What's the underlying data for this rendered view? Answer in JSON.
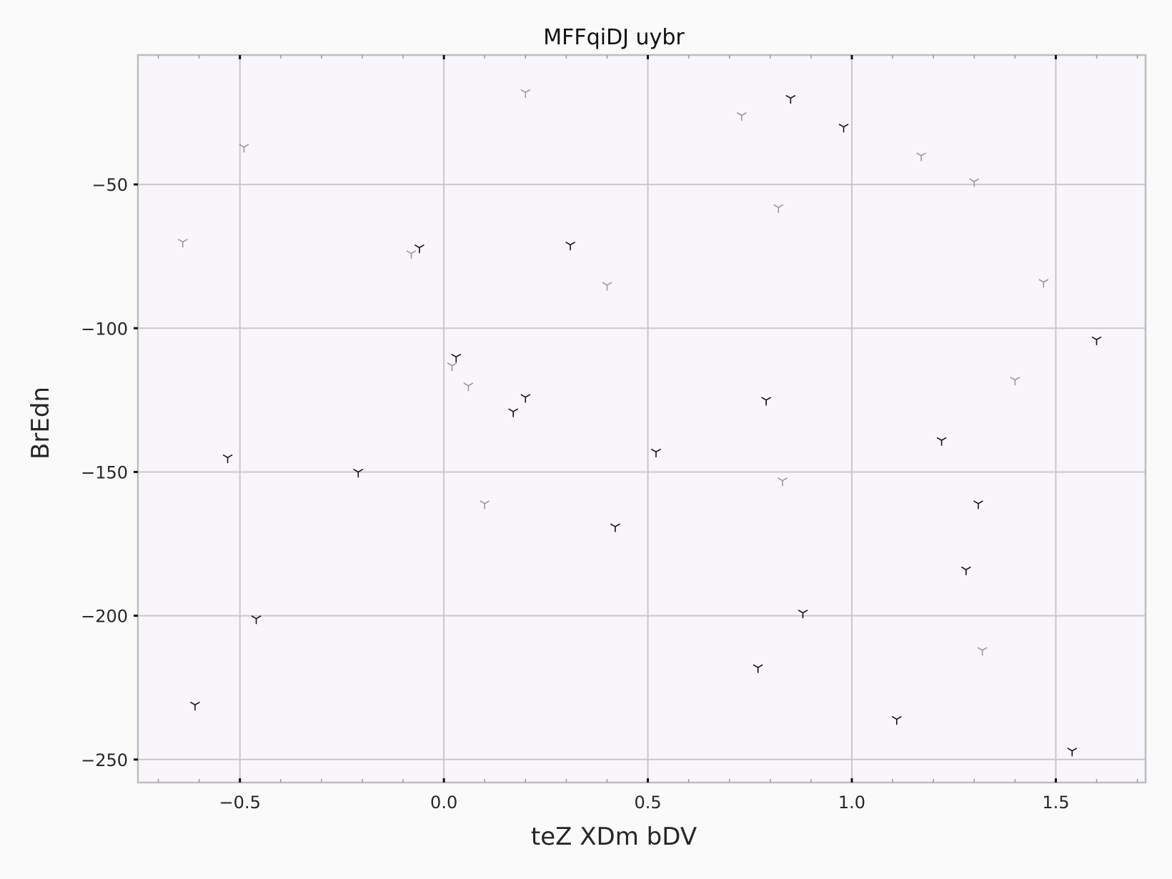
{
  "chart_data": {
    "type": "scatter",
    "title": "MFFqiDJ uybr",
    "xlabel": "teZ XDm bDV",
    "ylabel": "BrEdn",
    "xlim": [
      -0.75,
      1.72
    ],
    "ylim": [
      -258,
      -5
    ],
    "xticks": [
      -0.5,
      0.0,
      0.5,
      1.0,
      1.5
    ],
    "xtick_labels": [
      "−0.5",
      "0.0",
      "0.5",
      "1.0",
      "1.5"
    ],
    "yticks": [
      -50,
      -100,
      -150,
      -200,
      -250
    ],
    "ytick_labels": [
      "−50",
      "−100",
      "−150",
      "−200",
      "−250"
    ],
    "grid": true,
    "marker": "tri_down",
    "series": [
      {
        "color": "#111111",
        "x": [
          0.85,
          0.98,
          -0.06,
          0.31,
          1.6,
          0.03,
          0.2,
          0.17,
          0.79,
          -0.53,
          0.52,
          1.22,
          -0.21,
          1.31,
          0.42,
          1.28,
          -0.46,
          0.88,
          0.77,
          -0.61,
          1.11,
          1.54
        ],
        "y": [
          -20,
          -30,
          -72,
          -71,
          -104,
          -110,
          -124,
          -129,
          -125,
          -145,
          -143,
          -139,
          -150,
          -161,
          -169,
          -184,
          -201,
          -199,
          -218,
          -231,
          -236,
          -247
        ]
      },
      {
        "color": "#999999",
        "x": [
          0.2,
          0.73,
          -0.49,
          1.17,
          1.3,
          0.82,
          -0.64,
          -0.08,
          0.4,
          1.47,
          0.02,
          0.06,
          1.4,
          0.83,
          0.1,
          1.32
        ],
        "y": [
          -18,
          -26,
          -37,
          -40,
          -49,
          -58,
          -70,
          -74,
          -85,
          -84,
          -113,
          -120,
          -118,
          -153,
          -161,
          -212
        ]
      }
    ]
  }
}
